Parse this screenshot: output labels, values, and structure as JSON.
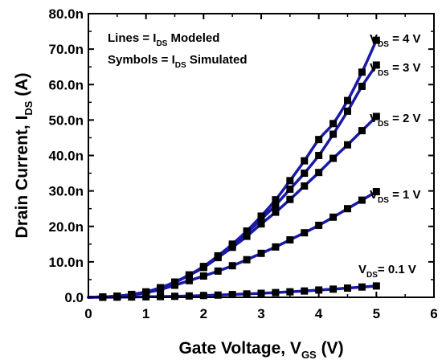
{
  "chart_data": {
    "type": "line",
    "xlabel": {
      "main": "Gate Voltage, V",
      "sub": "GS",
      "suffix": " (V)"
    },
    "ylabel": {
      "main": "Drain Current, I",
      "sub": "DS",
      "suffix": " (A)"
    },
    "xlim": [
      0,
      6
    ],
    "ylim": [
      0,
      80
    ],
    "x_ticks": [
      0,
      1,
      2,
      3,
      4,
      5,
      6
    ],
    "x_tick_labels": [
      "0",
      "1",
      "2",
      "3",
      "4",
      "5",
      "6"
    ],
    "y_ticks": [
      0,
      10,
      20,
      30,
      40,
      50,
      60,
      70,
      80
    ],
    "y_tick_labels": [
      "0.0",
      "10.0n",
      "20.0n",
      "30.0n",
      "40.0n",
      "50.0n",
      "60.0n",
      "70.0n",
      "80.0n"
    ],
    "legend": {
      "placement": "top-left",
      "lines": [
        {
          "pre": "Lines = I",
          "sub": "DS",
          "post": " Modeled"
        },
        {
          "pre": "Symbols = I",
          "sub": "DS",
          "post": " Simulated"
        }
      ]
    },
    "line_color": "#1a1aa6",
    "marker_color": "#000000",
    "series": [
      {
        "label": {
          "pre": "V",
          "sub": "DS",
          "post": "= 0.1 V"
        },
        "x": [
          0,
          0.25,
          0.5,
          0.75,
          1,
          1.25,
          1.5,
          1.75,
          2,
          2.25,
          2.5,
          2.75,
          3,
          3.25,
          3.5,
          3.75,
          4,
          4.25,
          4.5,
          4.75,
          5
        ],
        "y": [
          0,
          0.01,
          0.04,
          0.08,
          0.14,
          0.2,
          0.28,
          0.38,
          0.5,
          0.63,
          0.78,
          0.95,
          1.13,
          1.33,
          1.55,
          1.78,
          2.05,
          2.3,
          2.6,
          2.9,
          3.2
        ]
      },
      {
        "label": {
          "pre": "V",
          "sub": "DS",
          "post": " = 1 V"
        },
        "x": [
          0,
          0.25,
          0.5,
          0.75,
          1,
          1.25,
          1.5,
          1.75,
          2,
          2.25,
          2.5,
          2.75,
          3,
          3.25,
          3.5,
          3.75,
          4,
          4.25,
          4.5,
          4.75,
          5
        ],
        "y": [
          0,
          0.1,
          0.3,
          0.7,
          1.3,
          2.2,
          3.4,
          4.7,
          6.0,
          7.4,
          8.9,
          10.6,
          12.4,
          14.2,
          16.2,
          18.2,
          20.3,
          22.6,
          25.0,
          27.4,
          29.8
        ]
      },
      {
        "label": {
          "pre": "V",
          "sub": "DS",
          "post": " = 2 V"
        },
        "x": [
          0,
          0.25,
          0.5,
          0.75,
          1,
          1.25,
          1.5,
          1.75,
          2,
          2.25,
          2.5,
          2.75,
          3,
          3.25,
          3.5,
          3.75,
          4,
          4.25,
          4.5,
          4.75,
          5
        ],
        "y": [
          0,
          0.1,
          0.3,
          0.8,
          1.5,
          2.6,
          4.2,
          6.2,
          8.4,
          11.2,
          14.1,
          17.2,
          20.7,
          24.0,
          27.6,
          31.4,
          35.2,
          39.2,
          43.0,
          47.0,
          51.0
        ]
      },
      {
        "label": {
          "pre": "V",
          "sub": "DS",
          "post": " = 3 V"
        },
        "x": [
          0,
          0.25,
          0.5,
          0.75,
          1,
          1.25,
          1.5,
          1.75,
          2,
          2.25,
          2.5,
          2.75,
          3,
          3.25,
          3.5,
          3.75,
          4,
          4.25,
          4.5,
          4.75,
          5
        ],
        "y": [
          0,
          0.1,
          0.3,
          0.8,
          1.5,
          2.7,
          4.2,
          6.3,
          8.6,
          11.6,
          14.7,
          18.2,
          22.0,
          26.0,
          30.5,
          35.0,
          40.0,
          46.0,
          52.5,
          59.5,
          65.5
        ]
      },
      {
        "label": {
          "pre": "V",
          "sub": "DS",
          "post": " = 4 V"
        },
        "x": [
          0,
          0.25,
          0.5,
          0.75,
          1,
          1.25,
          1.5,
          1.75,
          2,
          2.25,
          2.5,
          2.75,
          3,
          3.25,
          3.5,
          3.75,
          4,
          4.25,
          4.5,
          4.75,
          5
        ],
        "y": [
          0,
          0.1,
          0.3,
          0.8,
          1.5,
          2.7,
          4.3,
          6.3,
          8.7,
          11.7,
          15.0,
          18.7,
          22.9,
          27.5,
          32.9,
          38.5,
          44.5,
          49.0,
          55.5,
          63.5,
          72.5
        ]
      }
    ]
  }
}
